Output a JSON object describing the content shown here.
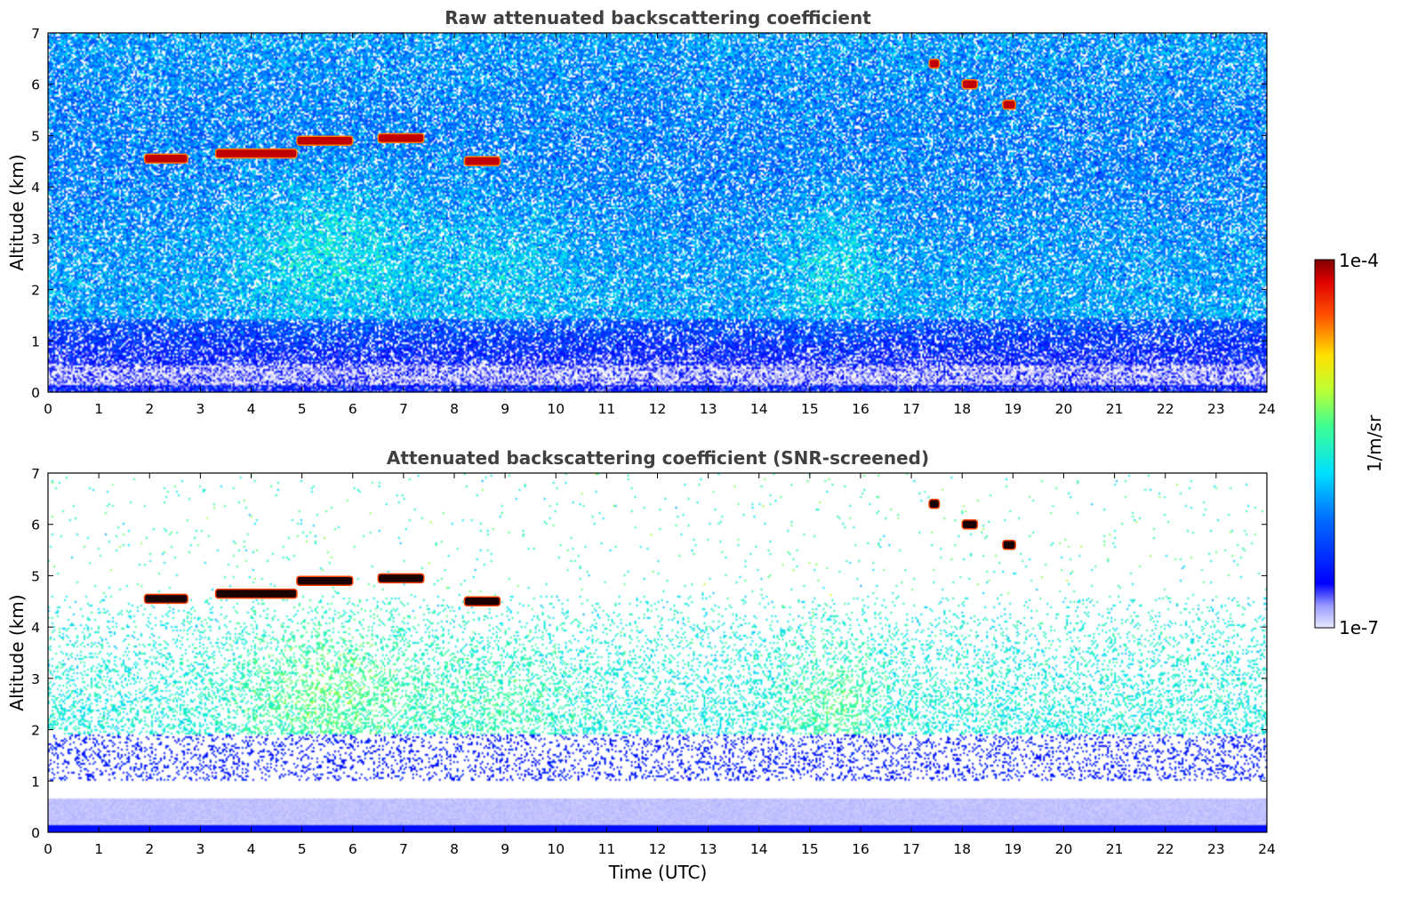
{
  "chart_data": {
    "type": "heatmap",
    "colormap": "jet",
    "colors": {
      "cloud_core": "#8b0000",
      "boundary_layer": "#1a1aff",
      "background": "#ffffff"
    },
    "x_ticks": [
      "0",
      "1",
      "2",
      "3",
      "4",
      "5",
      "6",
      "7",
      "8",
      "9",
      "10",
      "11",
      "12",
      "13",
      "14",
      "15",
      "16",
      "17",
      "18",
      "19",
      "20",
      "21",
      "22",
      "23",
      "24"
    ],
    "y_ticks": [
      "0",
      "1",
      "2",
      "3",
      "4",
      "5",
      "6",
      "7"
    ],
    "xlim": [
      0,
      24
    ],
    "ylim": [
      0,
      7
    ],
    "colorbar": {
      "label": "1/m/sr",
      "scale": "log",
      "range": [
        1e-07,
        0.0001
      ],
      "max_label": "1e-4",
      "min_label": "1e-7"
    },
    "panels": [
      {
        "title": "Raw attenuated backscattering coefficient",
        "ylabel": "Altitude (km)",
        "xlabel": "",
        "screened": false,
        "features": [
          {
            "kind": "cloud_layer",
            "t_start": 1.9,
            "t_end": 2.75,
            "alt_km": 4.55
          },
          {
            "kind": "cloud_layer",
            "t_start": 3.3,
            "t_end": 4.9,
            "alt_km": 4.65
          },
          {
            "kind": "cloud_layer",
            "t_start": 4.9,
            "t_end": 6.0,
            "alt_km": 4.9
          },
          {
            "kind": "cloud_layer",
            "t_start": 6.5,
            "t_end": 7.4,
            "alt_km": 4.95
          },
          {
            "kind": "cloud_layer",
            "t_start": 8.2,
            "t_end": 8.9,
            "alt_km": 4.5
          },
          {
            "kind": "cloud_layer",
            "t_start": 17.35,
            "t_end": 17.55,
            "alt_km": 6.4
          },
          {
            "kind": "cloud_layer",
            "t_start": 18.0,
            "t_end": 18.3,
            "alt_km": 6.0
          },
          {
            "kind": "cloud_layer",
            "t_start": 18.8,
            "t_end": 19.05,
            "alt_km": 5.6
          }
        ]
      },
      {
        "title": "Attenuated backscattering coefficient (SNR-screened)",
        "ylabel": "Altitude (km)",
        "xlabel": "Time (UTC)",
        "screened": true,
        "features": [
          {
            "kind": "cloud_layer",
            "t_start": 1.9,
            "t_end": 2.75,
            "alt_km": 4.55
          },
          {
            "kind": "cloud_layer",
            "t_start": 3.3,
            "t_end": 4.9,
            "alt_km": 4.65
          },
          {
            "kind": "cloud_layer",
            "t_start": 4.9,
            "t_end": 6.0,
            "alt_km": 4.9
          },
          {
            "kind": "cloud_layer",
            "t_start": 6.5,
            "t_end": 7.4,
            "alt_km": 4.95
          },
          {
            "kind": "cloud_layer",
            "t_start": 8.2,
            "t_end": 8.9,
            "alt_km": 4.5
          },
          {
            "kind": "cloud_layer",
            "t_start": 17.35,
            "t_end": 17.55,
            "alt_km": 6.4
          },
          {
            "kind": "cloud_layer",
            "t_start": 18.0,
            "t_end": 18.3,
            "alt_km": 6.0
          },
          {
            "kind": "cloud_layer",
            "t_start": 18.8,
            "t_end": 19.05,
            "alt_km": 5.6
          }
        ]
      }
    ]
  }
}
